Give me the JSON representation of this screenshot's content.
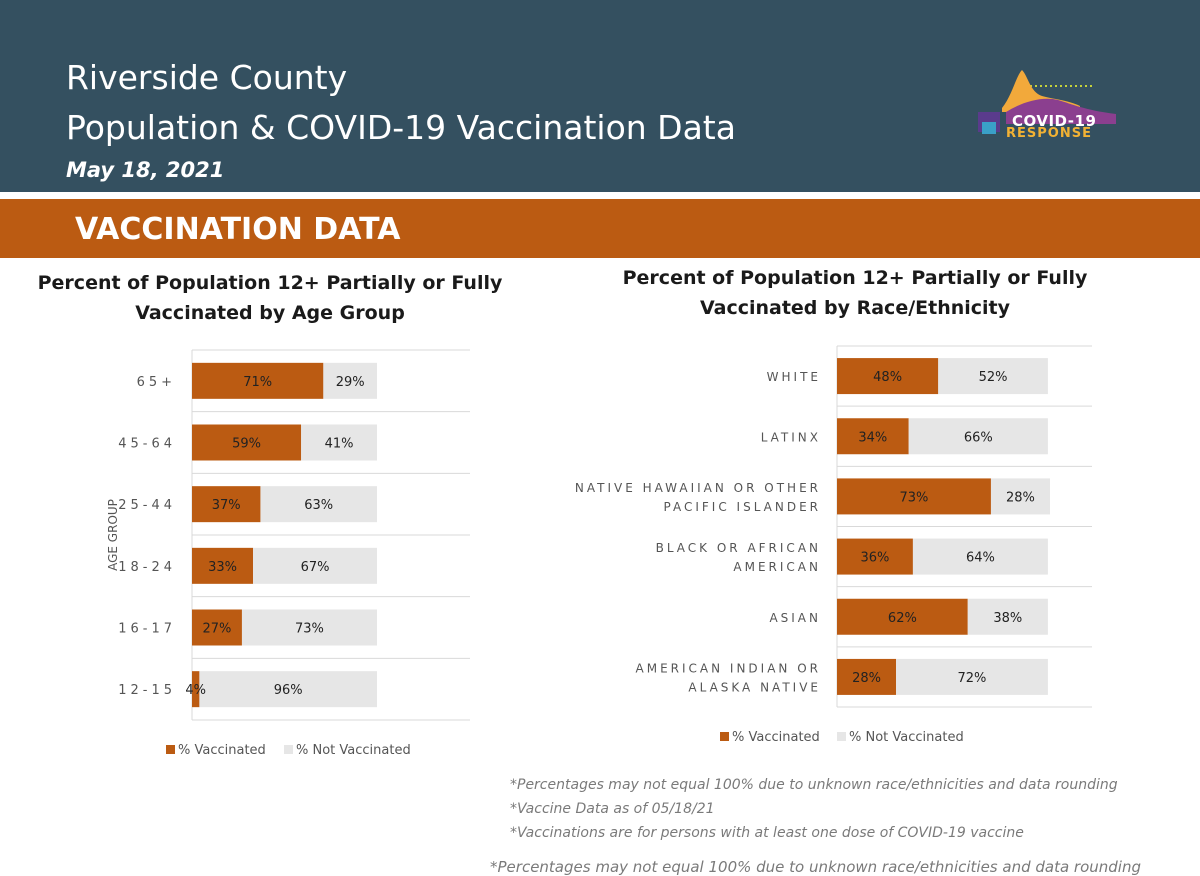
{
  "header": {
    "line1": "Riverside County",
    "line2": "Population & COVID-19 Vaccination Data",
    "date": "May 18, 2021",
    "logo_text": "COVID-19",
    "logo_text2": "RESPONSE"
  },
  "band": {
    "title": "VACCINATION DATA"
  },
  "colors": {
    "vaccinated": "#bb5b12",
    "not_vaccinated": "#e6e6e6",
    "header": "#345060"
  },
  "chart_data": [
    {
      "type": "bar",
      "orientation": "horizontal",
      "stacked": true,
      "title": "Percent of Population 12+ Partially or Fully Vaccinated by Age Group",
      "ylabel": "AGE GROUP",
      "categories": [
        "65+",
        "45-64",
        "25-44",
        "18-24",
        "16-17",
        "12-15"
      ],
      "series": [
        {
          "name": "% Vaccinated",
          "values": [
            71,
            59,
            37,
            33,
            27,
            4
          ],
          "labels": [
            "71%",
            "59%",
            "37%",
            "33%",
            "27%",
            "4%"
          ]
        },
        {
          "name": "% Not Vaccinated",
          "values": [
            29,
            41,
            63,
            67,
            73,
            96
          ],
          "labels": [
            "29%",
            "41%",
            "63%",
            "67%",
            "73%",
            "96%"
          ]
        }
      ],
      "xlim": [
        0,
        100
      ],
      "legend": "bottom"
    },
    {
      "type": "bar",
      "orientation": "horizontal",
      "stacked": true,
      "title": "Percent of Population 12+ Partially or Fully Vaccinated  by Race/Ethnicity",
      "categories": [
        [
          "WHITE"
        ],
        [
          "LATINX"
        ],
        [
          "NATIVE HAWAIIAN OR OTHER",
          "PACIFIC ISLANDER"
        ],
        [
          "BLACK OR AFRICAN",
          "AMERICAN"
        ],
        [
          "ASIAN"
        ],
        [
          "AMERICAN INDIAN OR",
          "ALASKA NATIVE"
        ]
      ],
      "series": [
        {
          "name": "% Vaccinated",
          "values": [
            48,
            34,
            73,
            36,
            62,
            28
          ],
          "labels": [
            "48%",
            "34%",
            "73%",
            "36%",
            "62%",
            "28%"
          ]
        },
        {
          "name": "% Not Vaccinated",
          "values": [
            52,
            66,
            28,
            64,
            38,
            72
          ],
          "labels": [
            "52%",
            "66%",
            "28%",
            "64%",
            "38%",
            "72%"
          ]
        }
      ],
      "xlim": [
        0,
        101
      ],
      "legend": "bottom"
    }
  ],
  "notes": [
    "*Percentages may not equal 100% due to unknown race/ethnicities and data rounding",
    "*Vaccine Data as of 05/18/21",
    "*Vaccinations are for persons with at least one dose of COVID-19 vaccine"
  ],
  "note_bottom": "*Percentages may not equal 100% due to unknown race/ethnicities and data rounding"
}
